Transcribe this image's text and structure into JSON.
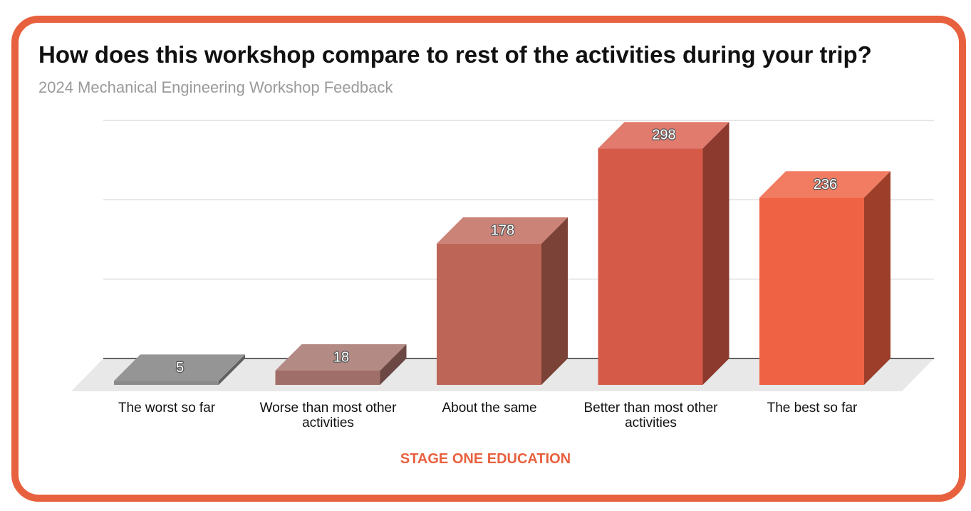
{
  "title": "How does this workshop compare to rest of the activities during your trip?",
  "subtitle": "2024 Mechanical Engineering Workshop Feedback",
  "footer": "STAGE ONE EDUCATION",
  "colors": {
    "border": "#e8613f",
    "footer": "#e8613f",
    "gridline": "#cccccc",
    "floor": "#e8e8e8"
  },
  "chart_data": {
    "type": "bar",
    "style": "3d",
    "categories": [
      "The worst so far",
      "Worse than most other activities",
      "About the same",
      "Better than most other activities",
      "The best so far"
    ],
    "category_label_lines": [
      [
        "The worst so far"
      ],
      [
        "Worse than most other",
        "activities"
      ],
      [
        "About the same"
      ],
      [
        "Better than most other",
        "activities"
      ],
      [
        "The best so far"
      ]
    ],
    "values": [
      5,
      18,
      178,
      298,
      236
    ],
    "data_labels": [
      "5",
      "18",
      "178",
      "298",
      "236"
    ],
    "bar_colors": [
      {
        "front": "#8a8a8a",
        "top": "#959595",
        "side": "#5f5f5f"
      },
      {
        "front": "#a06e68",
        "top": "#b38a84",
        "side": "#6b4844"
      },
      {
        "front": "#bd6657",
        "top": "#cb8377",
        "side": "#7b4238"
      },
      {
        "front": "#d65a48",
        "top": "#e07b6e",
        "side": "#8c3a2e"
      },
      {
        "front": "#f06244",
        "top": "#f27c62",
        "side": "#9c3e2a"
      }
    ],
    "ylim": [
      0,
      300
    ],
    "grid": true,
    "legend": "none"
  }
}
